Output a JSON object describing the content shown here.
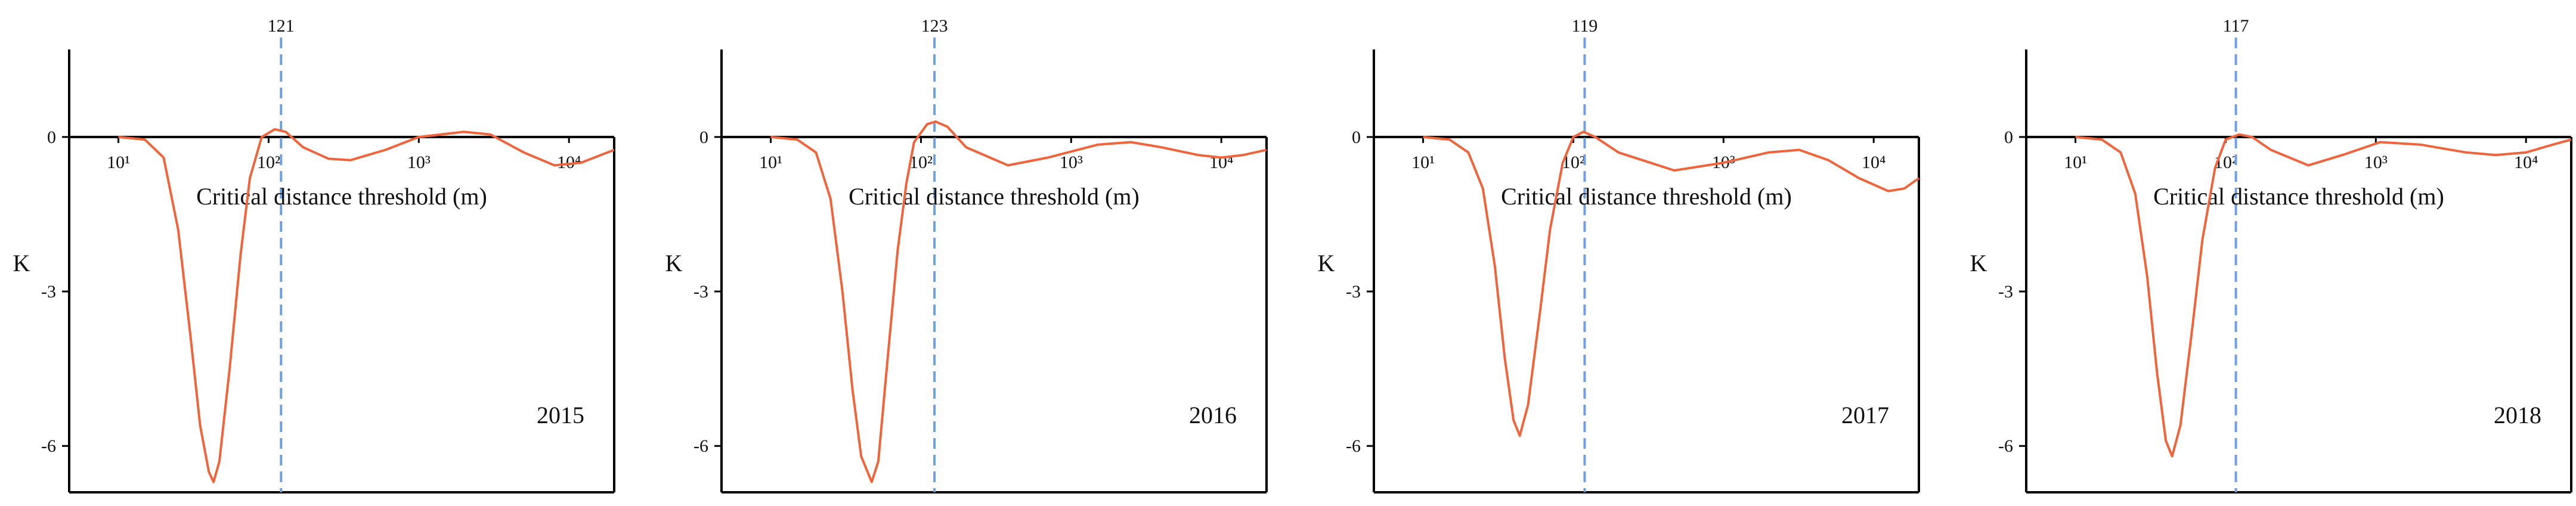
{
  "chart_data": [
    {
      "type": "line",
      "annotation": "2015",
      "xlabel": "Critical distance threshold (m)",
      "ylabel": "K",
      "vline": 121,
      "xlog": true,
      "xlim": [
        4.7,
        20000
      ],
      "ylim": [
        -6.9,
        1.7
      ],
      "xticks": [
        {
          "value": 10,
          "label": "10¹"
        },
        {
          "value": 100,
          "label": "10²"
        },
        {
          "value": 1000,
          "label": "10³"
        },
        {
          "value": 10000,
          "label": "10⁴"
        }
      ],
      "yticks": [
        -6,
        -3,
        0
      ],
      "x": [
        10,
        15,
        20,
        25,
        30,
        35,
        40,
        43,
        47,
        55,
        65,
        75,
        90,
        110,
        130,
        170,
        250,
        350,
        600,
        1000,
        2000,
        3000,
        5000,
        8000,
        12000,
        20000
      ],
      "series": [
        {
          "color": "#f0643c",
          "values": [
            0,
            -0.05,
            -0.4,
            -1.8,
            -3.8,
            -5.6,
            -6.5,
            -6.7,
            -6.3,
            -4.5,
            -2.3,
            -0.8,
            0,
            0.15,
            0.1,
            -0.2,
            -0.42,
            -0.45,
            -0.25,
            0,
            0.1,
            0.05,
            -0.3,
            -0.55,
            -0.5,
            -0.25
          ]
        }
      ]
    },
    {
      "type": "line",
      "annotation": "2016",
      "xlabel": "Critical distance threshold (m)",
      "ylabel": "K",
      "vline": 123,
      "xlog": true,
      "xlim": [
        4.7,
        20000
      ],
      "ylim": [
        -6.9,
        1.7
      ],
      "xticks": [
        {
          "value": 10,
          "label": "10¹"
        },
        {
          "value": 100,
          "label": "10²"
        },
        {
          "value": 1000,
          "label": "10³"
        },
        {
          "value": 10000,
          "label": "10⁴"
        }
      ],
      "yticks": [
        -6,
        -3,
        0
      ],
      "x": [
        10,
        15,
        20,
        25,
        30,
        35,
        40,
        47,
        52,
        60,
        70,
        80,
        90,
        110,
        125,
        150,
        200,
        380,
        700,
        1500,
        2500,
        4000,
        7000,
        10000,
        14000,
        20000
      ],
      "series": [
        {
          "color": "#f0643c",
          "values": [
            0,
            -0.05,
            -0.3,
            -1.2,
            -3.0,
            -4.9,
            -6.2,
            -6.7,
            -6.3,
            -4.3,
            -2.2,
            -0.9,
            -0.1,
            0.25,
            0.3,
            0.2,
            -0.2,
            -0.55,
            -0.4,
            -0.15,
            -0.1,
            -0.2,
            -0.35,
            -0.4,
            -0.35,
            -0.25
          ]
        }
      ]
    },
    {
      "type": "line",
      "annotation": "2017",
      "xlabel": "Critical distance threshold (m)",
      "ylabel": "K",
      "vline": 119,
      "xlog": true,
      "xlim": [
        4.7,
        20000
      ],
      "ylim": [
        -6.9,
        1.7
      ],
      "xticks": [
        {
          "value": 10,
          "label": "10¹"
        },
        {
          "value": 100,
          "label": "10²"
        },
        {
          "value": 1000,
          "label": "10³"
        },
        {
          "value": 10000,
          "label": "10⁴"
        }
      ],
      "yticks": [
        -6,
        -3,
        0
      ],
      "x": [
        10,
        15,
        20,
        25,
        30,
        35,
        40,
        44,
        50,
        60,
        70,
        85,
        100,
        117,
        140,
        200,
        470,
        1000,
        2000,
        3200,
        5000,
        8000,
        12500,
        16000,
        20000
      ],
      "series": [
        {
          "color": "#f0643c",
          "values": [
            0,
            -0.05,
            -0.3,
            -1.0,
            -2.5,
            -4.3,
            -5.5,
            -5.8,
            -5.2,
            -3.4,
            -1.8,
            -0.5,
            0,
            0.1,
            0.0,
            -0.3,
            -0.65,
            -0.5,
            -0.3,
            -0.25,
            -0.45,
            -0.8,
            -1.05,
            -1.0,
            -0.8
          ]
        }
      ]
    },
    {
      "type": "line",
      "annotation": "2018",
      "xlabel": "Critical distance threshold (m)",
      "ylabel": "K",
      "vline": 117,
      "xlog": true,
      "xlim": [
        4.7,
        20000
      ],
      "ylim": [
        -6.9,
        1.7
      ],
      "xticks": [
        {
          "value": 10,
          "label": "10¹"
        },
        {
          "value": 100,
          "label": "10²"
        },
        {
          "value": 1000,
          "label": "10³"
        },
        {
          "value": 10000,
          "label": "10⁴"
        }
      ],
      "yticks": [
        -6,
        -3,
        0
      ],
      "x": [
        10,
        15,
        20,
        25,
        30,
        35,
        40,
        44,
        50,
        60,
        70,
        85,
        100,
        123,
        150,
        200,
        355,
        600,
        1070,
        2000,
        4000,
        6300,
        10000,
        15000,
        20000
      ],
      "series": [
        {
          "color": "#f0643c",
          "values": [
            0,
            -0.05,
            -0.3,
            -1.1,
            -2.7,
            -4.6,
            -5.9,
            -6.2,
            -5.6,
            -3.7,
            -2.0,
            -0.6,
            -0.05,
            0.05,
            0.0,
            -0.25,
            -0.55,
            -0.35,
            -0.1,
            -0.15,
            -0.3,
            -0.35,
            -0.3,
            -0.15,
            -0.05
          ]
        }
      ]
    }
  ]
}
